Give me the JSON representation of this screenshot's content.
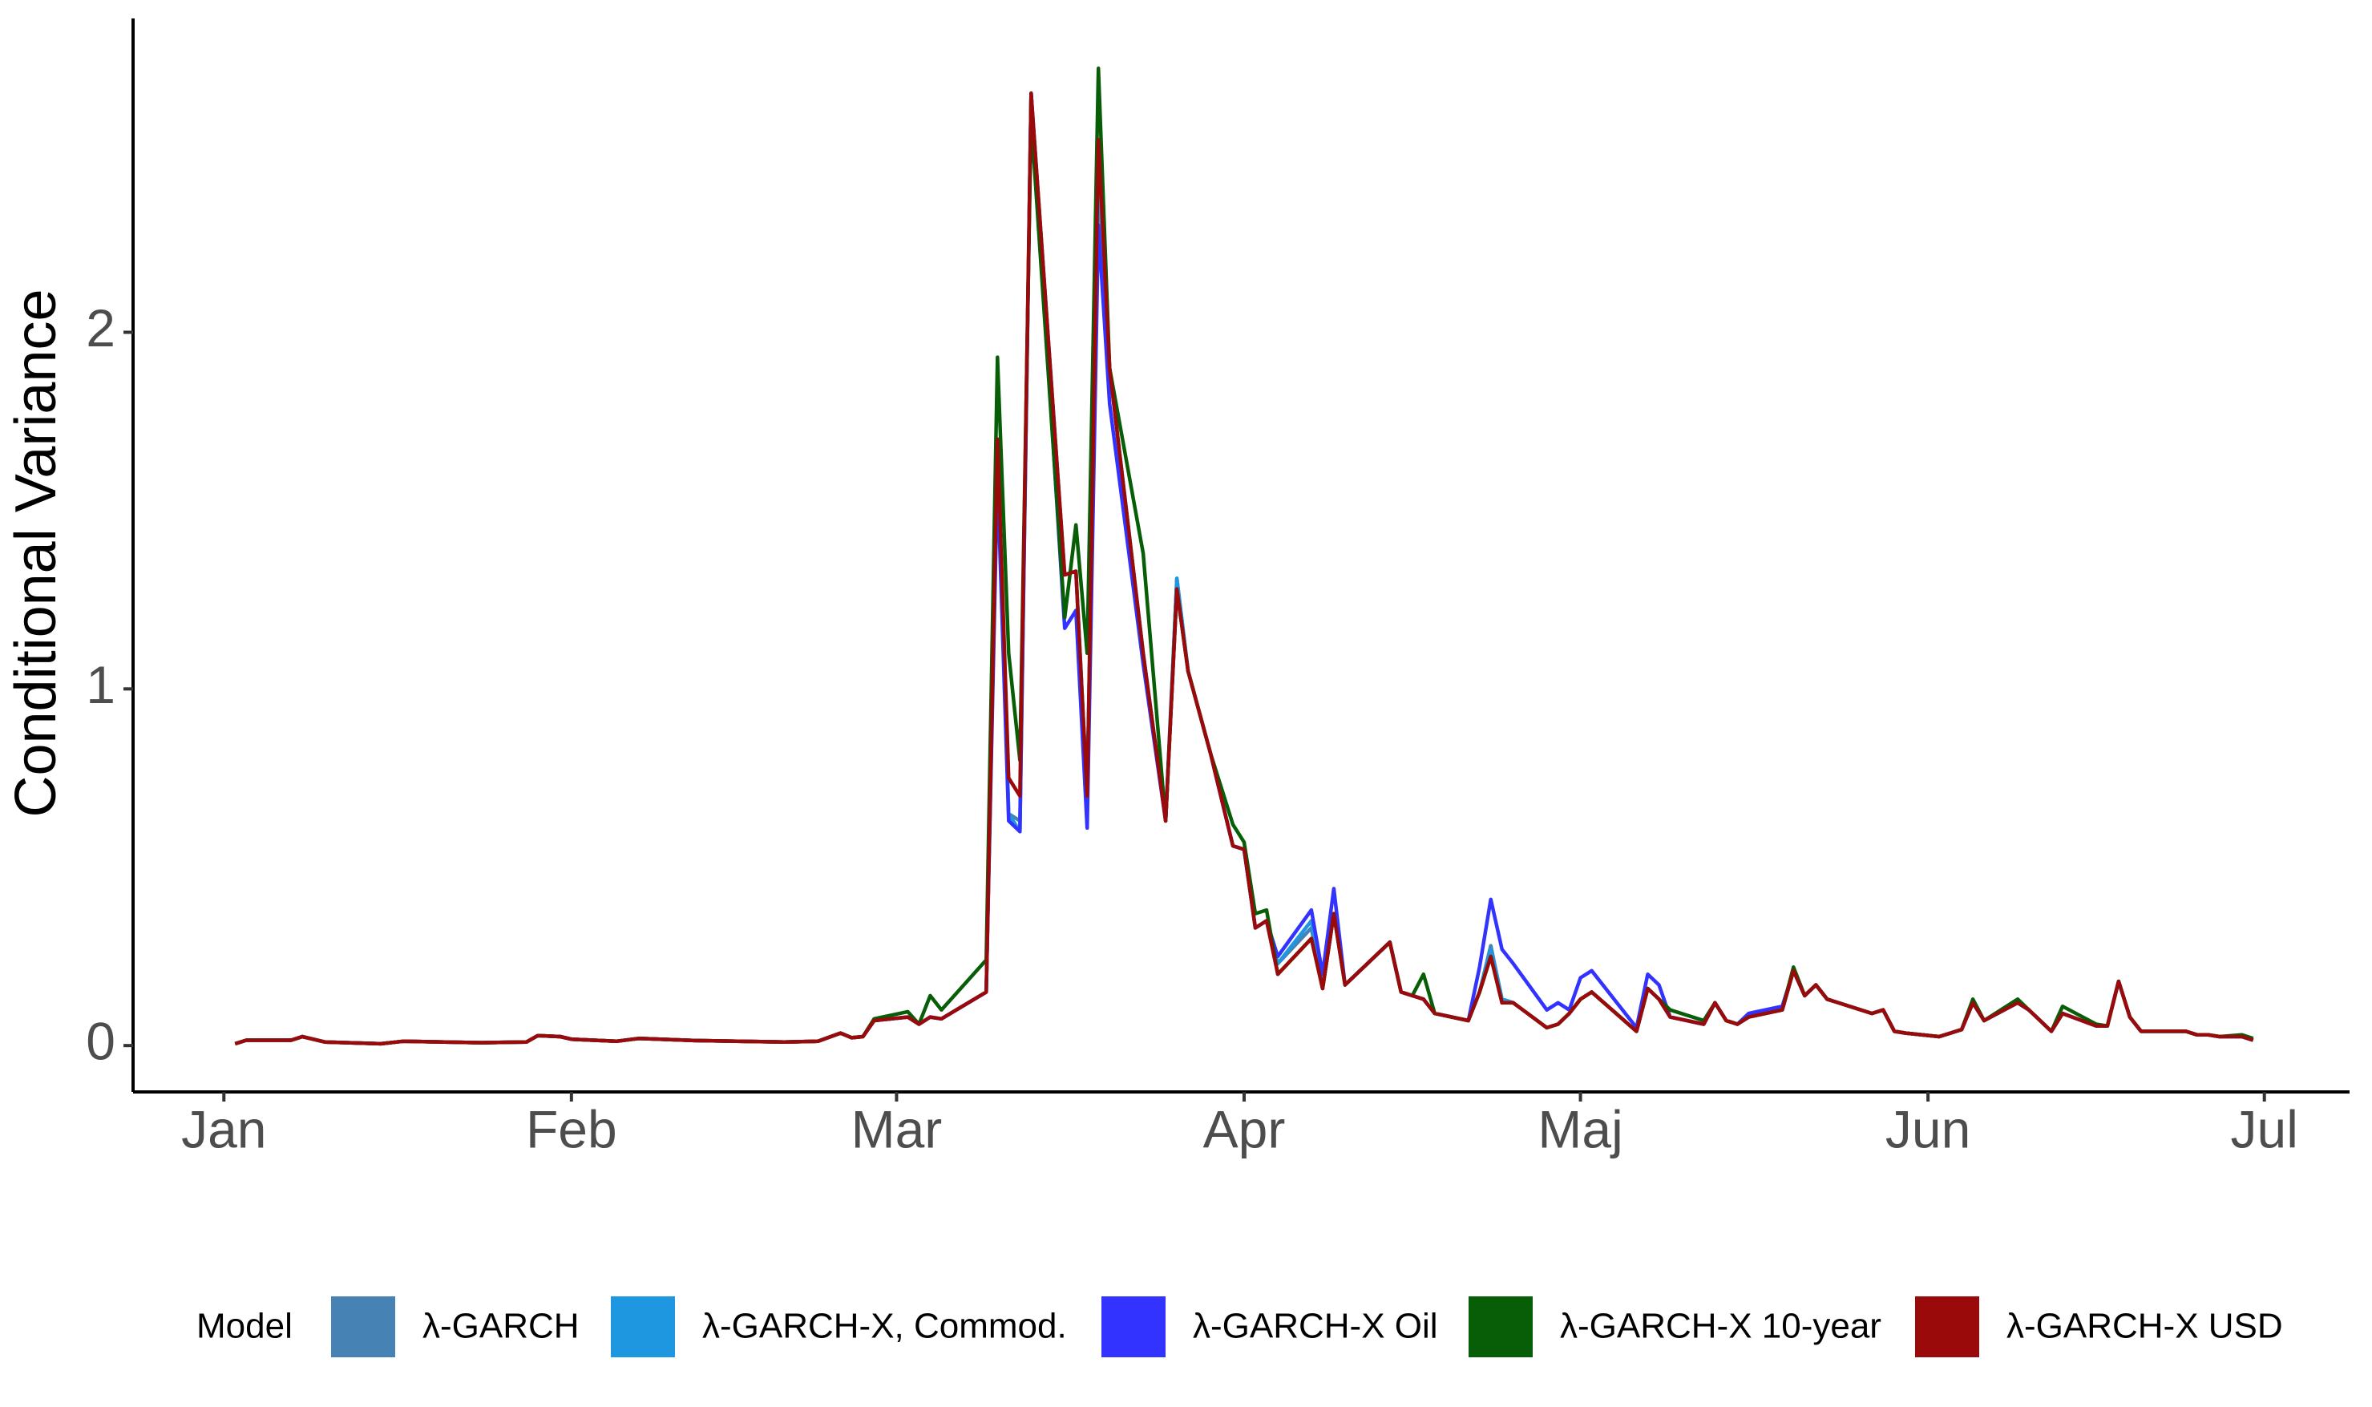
{
  "chart_data": {
    "type": "line",
    "y_label": "Conditional Variance",
    "legend_title": "Model",
    "legend": "bottom",
    "xlim": [
      -8.1,
      189.6
    ],
    "ylim": [
      -0.13,
      2.88
    ],
    "xticks": [
      {
        "value": 0,
        "label": "Jan"
      },
      {
        "value": 31,
        "label": "Feb"
      },
      {
        "value": 60,
        "label": "Mar"
      },
      {
        "value": 91,
        "label": "Apr"
      },
      {
        "value": 121,
        "label": "Maj"
      },
      {
        "value": 152,
        "label": "Jun"
      },
      {
        "value": 182,
        "label": "Jul"
      }
    ],
    "yticks": [
      0,
      1,
      2
    ],
    "x": [
      1,
      2,
      6,
      7,
      9,
      14,
      16,
      23,
      27,
      28,
      30,
      31,
      35,
      37,
      42,
      50,
      53,
      55,
      56,
      57,
      58,
      61,
      62,
      63,
      64,
      68,
      69,
      70,
      71,
      72,
      75,
      76,
      77,
      78,
      79,
      82,
      84,
      85,
      86,
      88,
      90,
      91,
      92,
      93,
      94,
      97,
      98,
      99,
      100,
      104,
      105,
      106,
      107,
      108,
      111,
      112,
      113,
      114,
      115,
      118,
      119,
      120,
      121,
      122,
      126,
      127,
      128,
      129,
      132,
      133,
      134,
      135,
      136,
      139,
      140,
      141,
      142,
      143,
      147,
      148,
      149,
      150,
      153,
      154,
      155,
      156,
      157,
      160,
      161,
      162,
      163,
      164,
      167,
      168,
      169,
      170,
      171,
      174,
      175,
      176,
      177,
      178,
      180,
      181
    ],
    "series": [
      {
        "name": "λ-GARCH",
        "color": "#4682b4",
        "values": [
          0.005,
          0.015,
          0.015,
          0.025,
          0.01,
          0.005,
          0.012,
          0.008,
          0.01,
          0.028,
          0.025,
          0.018,
          0.012,
          0.02,
          0.014,
          0.01,
          0.012,
          0.035,
          0.022,
          0.025,
          0.07,
          0.08,
          0.06,
          0.08,
          0.075,
          0.15,
          1.7,
          0.65,
          0.63,
          2.67,
          1.32,
          1.33,
          0.7,
          2.45,
          1.9,
          1.1,
          0.63,
          1.31,
          1.05,
          0.82,
          0.56,
          0.55,
          0.33,
          0.35,
          0.23,
          0.33,
          0.16,
          0.37,
          0.17,
          0.29,
          0.15,
          0.14,
          0.13,
          0.09,
          0.07,
          0.15,
          0.28,
          0.13,
          0.12,
          0.05,
          0.06,
          0.09,
          0.13,
          0.15,
          0.04,
          0.16,
          0.13,
          0.08,
          0.06,
          0.12,
          0.07,
          0.06,
          0.08,
          0.1,
          0.21,
          0.14,
          0.17,
          0.13,
          0.09,
          0.1,
          0.04,
          0.035,
          0.025,
          0.035,
          0.045,
          0.12,
          0.07,
          0.12,
          0.1,
          0.07,
          0.04,
          0.09,
          0.055,
          0.055,
          0.18,
          0.08,
          0.04,
          0.04,
          0.04,
          0.03,
          0.03,
          0.025,
          0.025,
          0.015
        ]
      },
      {
        "name": "λ-GARCH-X, Commod.",
        "color": "#1e96e0",
        "values": [
          0.005,
          0.015,
          0.015,
          0.025,
          0.01,
          0.005,
          0.012,
          0.008,
          0.01,
          0.028,
          0.025,
          0.018,
          0.012,
          0.02,
          0.014,
          0.01,
          0.012,
          0.035,
          0.022,
          0.025,
          0.07,
          0.08,
          0.06,
          0.08,
          0.075,
          0.15,
          1.65,
          0.65,
          0.6,
          2.67,
          1.32,
          1.33,
          0.7,
          2.45,
          1.9,
          1.1,
          0.63,
          1.31,
          1.05,
          0.82,
          0.56,
          0.55,
          0.33,
          0.35,
          0.23,
          0.35,
          0.16,
          0.37,
          0.17,
          0.29,
          0.15,
          0.14,
          0.13,
          0.09,
          0.07,
          0.15,
          0.27,
          0.13,
          0.12,
          0.05,
          0.06,
          0.09,
          0.13,
          0.15,
          0.04,
          0.16,
          0.13,
          0.08,
          0.06,
          0.12,
          0.07,
          0.06,
          0.08,
          0.1,
          0.21,
          0.14,
          0.17,
          0.13,
          0.09,
          0.1,
          0.04,
          0.035,
          0.025,
          0.035,
          0.045,
          0.12,
          0.07,
          0.12,
          0.1,
          0.07,
          0.04,
          0.09,
          0.055,
          0.055,
          0.18,
          0.08,
          0.04,
          0.04,
          0.04,
          0.03,
          0.03,
          0.025,
          0.025,
          0.015
        ]
      },
      {
        "name": "λ-GARCH-X Oil",
        "color": "#3333ff",
        "values": [
          0.005,
          0.015,
          0.015,
          0.025,
          0.01,
          0.005,
          0.012,
          0.008,
          0.01,
          0.028,
          0.025,
          0.018,
          0.012,
          0.02,
          0.014,
          0.01,
          0.012,
          0.035,
          0.022,
          0.025,
          0.07,
          0.08,
          0.06,
          0.08,
          0.075,
          0.15,
          1.6,
          0.63,
          0.6,
          2.67,
          1.17,
          1.22,
          0.61,
          2.3,
          1.8,
          1.07,
          0.63,
          1.28,
          1.05,
          0.82,
          0.56,
          0.55,
          0.33,
          0.35,
          0.25,
          0.38,
          0.2,
          0.44,
          0.17,
          0.29,
          0.15,
          0.14,
          0.13,
          0.09,
          0.07,
          0.22,
          0.41,
          0.27,
          0.23,
          0.1,
          0.12,
          0.1,
          0.19,
          0.21,
          0.05,
          0.2,
          0.17,
          0.08,
          0.06,
          0.12,
          0.07,
          0.06,
          0.09,
          0.11,
          0.21,
          0.14,
          0.17,
          0.13,
          0.09,
          0.1,
          0.04,
          0.035,
          0.025,
          0.035,
          0.045,
          0.12,
          0.07,
          0.12,
          0.1,
          0.07,
          0.04,
          0.09,
          0.055,
          0.055,
          0.18,
          0.08,
          0.04,
          0.04,
          0.04,
          0.03,
          0.03,
          0.025,
          0.025,
          0.015
        ]
      },
      {
        "name": "λ-GARCH-X 10-year",
        "color": "#075e07",
        "values": [
          0.005,
          0.015,
          0.015,
          0.025,
          0.01,
          0.005,
          0.012,
          0.008,
          0.01,
          0.028,
          0.025,
          0.018,
          0.012,
          0.02,
          0.014,
          0.01,
          0.012,
          0.035,
          0.022,
          0.025,
          0.075,
          0.095,
          0.06,
          0.14,
          0.1,
          0.24,
          1.93,
          1.1,
          0.8,
          2.6,
          1.2,
          1.46,
          1.1,
          2.74,
          1.9,
          1.38,
          0.63,
          1.28,
          1.05,
          0.82,
          0.62,
          0.57,
          0.37,
          0.38,
          0.2,
          0.3,
          0.16,
          0.37,
          0.17,
          0.29,
          0.15,
          0.14,
          0.2,
          0.09,
          0.07,
          0.15,
          0.25,
          0.12,
          0.12,
          0.05,
          0.06,
          0.09,
          0.13,
          0.15,
          0.04,
          0.16,
          0.13,
          0.1,
          0.07,
          0.12,
          0.07,
          0.06,
          0.08,
          0.1,
          0.22,
          0.14,
          0.17,
          0.13,
          0.09,
          0.1,
          0.04,
          0.035,
          0.025,
          0.035,
          0.045,
          0.13,
          0.07,
          0.13,
          0.1,
          0.07,
          0.04,
          0.11,
          0.06,
          0.055,
          0.18,
          0.08,
          0.04,
          0.04,
          0.04,
          0.03,
          0.03,
          0.025,
          0.03,
          0.02
        ]
      },
      {
        "name": "λ-GARCH-X USD",
        "color": "#9b0a0a",
        "values": [
          0.005,
          0.015,
          0.015,
          0.025,
          0.01,
          0.005,
          0.012,
          0.008,
          0.01,
          0.028,
          0.025,
          0.018,
          0.012,
          0.02,
          0.014,
          0.01,
          0.012,
          0.035,
          0.022,
          0.025,
          0.07,
          0.08,
          0.06,
          0.08,
          0.075,
          0.15,
          1.7,
          0.75,
          0.7,
          2.67,
          1.32,
          1.33,
          0.7,
          2.54,
          1.9,
          1.1,
          0.63,
          1.28,
          1.05,
          0.82,
          0.56,
          0.55,
          0.33,
          0.35,
          0.2,
          0.3,
          0.16,
          0.37,
          0.17,
          0.29,
          0.15,
          0.14,
          0.13,
          0.09,
          0.07,
          0.15,
          0.25,
          0.12,
          0.12,
          0.05,
          0.06,
          0.09,
          0.13,
          0.15,
          0.04,
          0.16,
          0.13,
          0.08,
          0.06,
          0.12,
          0.07,
          0.06,
          0.08,
          0.1,
          0.21,
          0.14,
          0.17,
          0.13,
          0.09,
          0.1,
          0.04,
          0.035,
          0.025,
          0.035,
          0.045,
          0.12,
          0.07,
          0.12,
          0.1,
          0.07,
          0.04,
          0.09,
          0.055,
          0.055,
          0.18,
          0.08,
          0.04,
          0.04,
          0.04,
          0.03,
          0.03,
          0.025,
          0.025,
          0.015
        ]
      }
    ]
  }
}
